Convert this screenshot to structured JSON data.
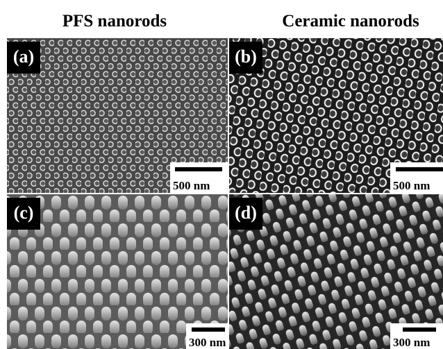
{
  "columns": [
    "PFS nanorods",
    "Ceramic nanorods"
  ],
  "panels": [
    {
      "label": "(a)",
      "scale_bar": "500 nm"
    },
    {
      "label": "(b)",
      "scale_bar": "500 nm"
    },
    {
      "label": "(c)",
      "scale_bar": "300 nm"
    },
    {
      "label": "(d)",
      "scale_bar": "300 nm"
    }
  ]
}
